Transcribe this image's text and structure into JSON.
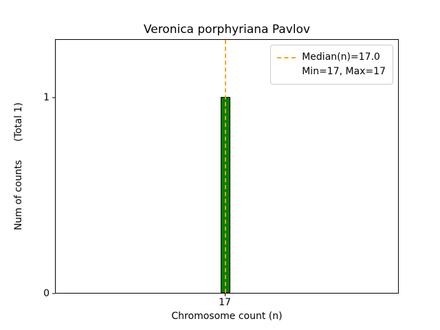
{
  "chart_data": {
    "type": "bar",
    "title": "Veronica porphyriana Pavlov",
    "xlabel": "Chromosome count (n)",
    "ylabel": "Num of counts      (Total 1)",
    "categories": [
      "17"
    ],
    "values": [
      1
    ],
    "ylim": [
      0,
      1.3
    ],
    "yticks": [
      0,
      1
    ],
    "ytick_labels": [
      "0",
      "1"
    ],
    "xtick_labels": [
      "17"
    ],
    "bar_center_frac": 0.494,
    "bar_width_frac": 0.028,
    "bar_color": "#007e00",
    "bar_edge_color": "#000000",
    "median_value": 17.0,
    "median_line_color": "#ffa500",
    "grid": false,
    "legend": {
      "position": "upper right",
      "entries": [
        "Median(n)=17.0",
        "Min=17, Max=17"
      ]
    }
  }
}
